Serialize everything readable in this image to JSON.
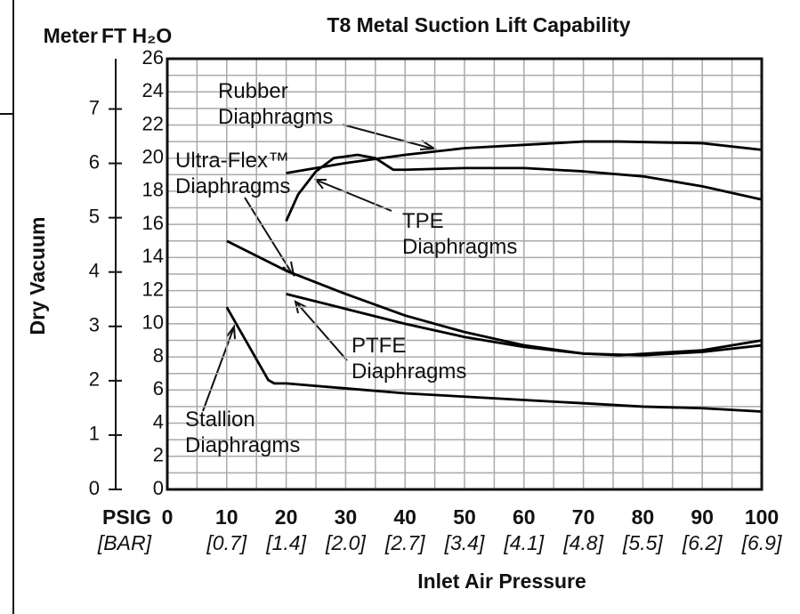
{
  "chart_data": {
    "type": "line",
    "title": "T8 Metal Suction Lift Capability",
    "ylabel": "Dry Vacuum",
    "xlabel": "Inlet Air Pressure",
    "y_unit_label": "FT H₂O",
    "y2_unit_label": "Meter",
    "x_unit_label": "PSIG",
    "x2_unit_label": "[BAR]",
    "xlim": [
      0,
      100
    ],
    "xticks": [
      0,
      10,
      20,
      30,
      40,
      50,
      60,
      70,
      80,
      90,
      100
    ],
    "xminor": [
      5,
      15,
      25,
      35,
      45,
      55,
      65,
      75,
      85,
      95
    ],
    "x2ticks": [
      {
        "value": 10,
        "label": "[0.7]"
      },
      {
        "value": 20,
        "label": "[1.4]"
      },
      {
        "value": 30,
        "label": "[2.0]"
      },
      {
        "value": 40,
        "label": "[2.7]"
      },
      {
        "value": 50,
        "label": "[3.4]"
      },
      {
        "value": 60,
        "label": "[4.1]"
      },
      {
        "value": 70,
        "label": "[4.8]"
      },
      {
        "value": 80,
        "label": "[5.5]"
      },
      {
        "value": 90,
        "label": "[6.2]"
      },
      {
        "value": 100,
        "label": "[6.9]"
      }
    ],
    "ylim": [
      0,
      26
    ],
    "yticks": [
      0,
      2,
      4,
      6,
      8,
      10,
      12,
      14,
      16,
      18,
      20,
      22,
      24,
      26
    ],
    "yminor": [
      1,
      3,
      5,
      7,
      9,
      11,
      13,
      15,
      17,
      19,
      21,
      23,
      25
    ],
    "y2lim": [
      0,
      7.925
    ],
    "y2ticks": [
      0,
      1,
      2,
      3,
      4,
      5,
      6,
      7
    ],
    "grid": true,
    "series": [
      {
        "name": "Rubber Diaphragms",
        "color": "#000000",
        "x": [
          20,
          30,
          40,
          50,
          60,
          70,
          76,
          90,
          100
        ],
        "values": [
          19.1,
          19.7,
          20.2,
          20.6,
          20.8,
          21.0,
          21.0,
          20.9,
          20.5
        ]
      },
      {
        "name": "Ultra-Flex™ Diaphragms",
        "color": "#000000",
        "x": [
          10,
          20,
          30,
          40,
          50,
          60,
          70,
          76,
          90,
          100
        ],
        "values": [
          15.0,
          13.2,
          11.8,
          10.5,
          9.5,
          8.7,
          8.2,
          8.1,
          8.4,
          9.0
        ]
      },
      {
        "name": "TPE Diaphragms",
        "color": "#000000",
        "x": [
          20,
          22,
          25,
          28,
          32,
          35,
          38,
          40,
          50,
          60,
          70,
          80,
          90,
          100
        ],
        "values": [
          16.2,
          17.8,
          19.2,
          20.0,
          20.2,
          20.0,
          19.3,
          19.3,
          19.4,
          19.4,
          19.2,
          18.9,
          18.3,
          17.5
        ]
      },
      {
        "name": "PTFE Diaphragms",
        "color": "#000000",
        "x": [
          20,
          30,
          40,
          50,
          60,
          70,
          80,
          90,
          100
        ],
        "values": [
          11.8,
          10.9,
          10.0,
          9.2,
          8.6,
          8.2,
          8.1,
          8.3,
          8.7
        ]
      },
      {
        "name": "Stallion Diaphragms",
        "color": "#000000",
        "x": [
          10,
          17,
          18,
          20,
          30,
          40,
          50,
          60,
          70,
          80,
          90,
          100
        ],
        "values": [
          11.0,
          6.6,
          6.4,
          6.4,
          6.1,
          5.8,
          5.6,
          5.4,
          5.2,
          5.0,
          4.9,
          4.7
        ]
      }
    ]
  }
}
